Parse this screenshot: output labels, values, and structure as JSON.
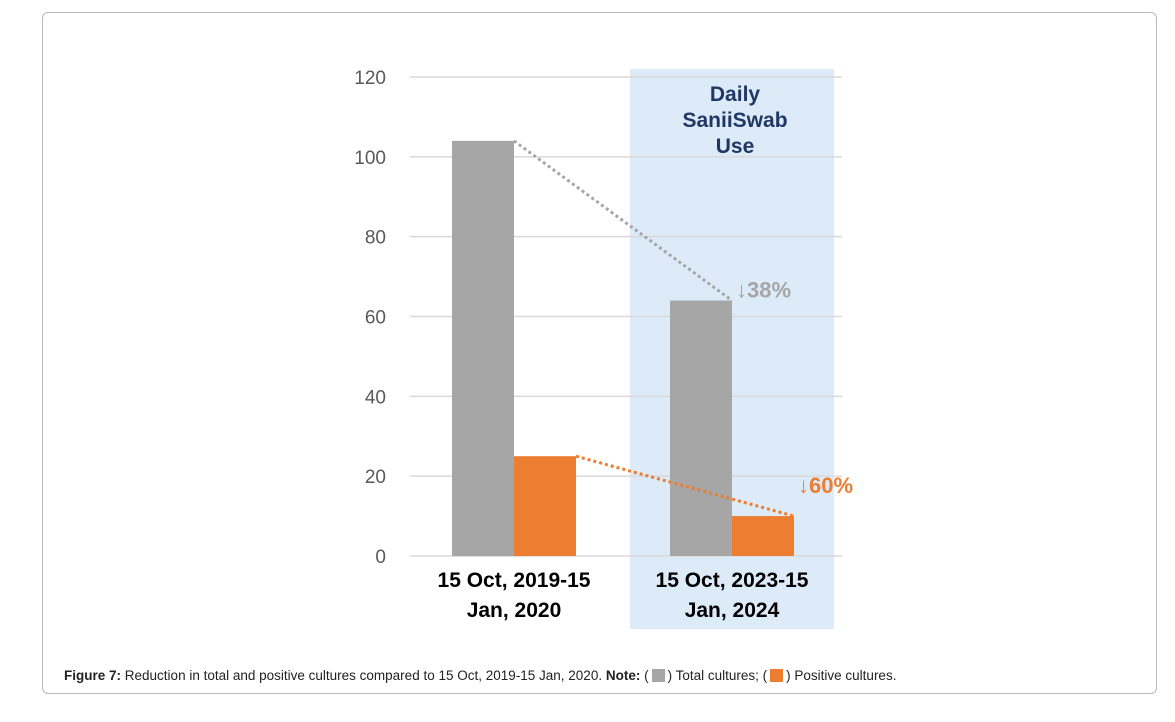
{
  "chart_data": {
    "type": "bar",
    "categories": [
      [
        "15 Oct, 2019-15",
        "Jan, 2020"
      ],
      [
        "15 Oct, 2023-15",
        "Jan, 2024"
      ]
    ],
    "series": [
      {
        "name": "Total cultures",
        "values": [
          104,
          64
        ],
        "color": "#a6a6a6"
      },
      {
        "name": "Positive cultures",
        "values": [
          25,
          10
        ],
        "color": "#ed7d31"
      }
    ],
    "ylim": [
      0,
      120
    ],
    "yticks": [
      0,
      20,
      40,
      60,
      80,
      100,
      120
    ],
    "grid": true,
    "highlight": {
      "category_index": 1,
      "label_lines": [
        "Daily",
        "SaniiSwab",
        "Use"
      ],
      "color": "#ddeaf7",
      "text_color": "#1f3864"
    },
    "annotations": [
      {
        "series_index": 0,
        "text": "↓38%",
        "color": "#a6a6a6"
      },
      {
        "series_index": 1,
        "text": "↓60%",
        "color": "#ed7d31"
      }
    ]
  },
  "caption": {
    "figure_label": "Figure 7:",
    "text": "Reduction in total and positive cultures compared to 15 Oct, 2019-15 Jan, 2020.",
    "note_label": "Note:",
    "legend_open": "(",
    "legend_total": ") Total cultures; (",
    "legend_positive": ") Positive cultures."
  }
}
